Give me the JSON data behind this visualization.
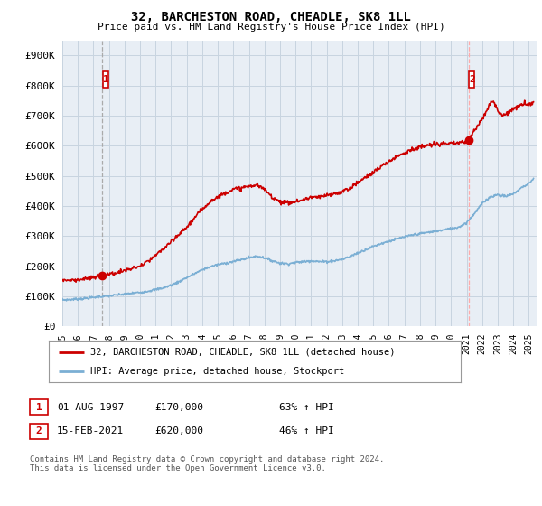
{
  "title": "32, BARCHESTON ROAD, CHEADLE, SK8 1LL",
  "subtitle": "Price paid vs. HM Land Registry's House Price Index (HPI)",
  "ylabel_ticks": [
    "£0",
    "£100K",
    "£200K",
    "£300K",
    "£400K",
    "£500K",
    "£600K",
    "£700K",
    "£800K",
    "£900K"
  ],
  "ytick_values": [
    0,
    100000,
    200000,
    300000,
    400000,
    500000,
    600000,
    700000,
    800000,
    900000
  ],
  "ylim": [
    0,
    950000
  ],
  "xlim_start": 1995.0,
  "xlim_end": 2025.5,
  "xticks": [
    1995,
    1996,
    1997,
    1998,
    1999,
    2000,
    2001,
    2002,
    2003,
    2004,
    2005,
    2006,
    2007,
    2008,
    2009,
    2010,
    2011,
    2012,
    2013,
    2014,
    2015,
    2016,
    2017,
    2018,
    2019,
    2020,
    2021,
    2022,
    2023,
    2024,
    2025
  ],
  "hpi_color": "#7bafd4",
  "sale_color": "#cc0000",
  "vline_color": "#aaaaaa",
  "vline2_color": "#ff8888",
  "point1_x": 1997.58,
  "point1_y": 170000,
  "point2_x": 2021.12,
  "point2_y": 620000,
  "chart_bg": "#e8eef5",
  "legend_sale_label": "32, BARCHESTON ROAD, CHEADLE, SK8 1LL (detached house)",
  "legend_hpi_label": "HPI: Average price, detached house, Stockport",
  "table_row1": [
    "1",
    "01-AUG-1997",
    "£170,000",
    "63% ↑ HPI"
  ],
  "table_row2": [
    "2",
    "15-FEB-2021",
    "£620,000",
    "46% ↑ HPI"
  ],
  "footnote": "Contains HM Land Registry data © Crown copyright and database right 2024.\nThis data is licensed under the Open Government Licence v3.0.",
  "background_color": "#ffffff",
  "grid_color": "#c8d4e0",
  "hpi_anchors": [
    [
      1995.0,
      88000
    ],
    [
      1995.5,
      89000
    ],
    [
      1996.0,
      91000
    ],
    [
      1996.5,
      93000
    ],
    [
      1997.0,
      96000
    ],
    [
      1997.5,
      99000
    ],
    [
      1998.0,
      101000
    ],
    [
      1998.5,
      104000
    ],
    [
      1999.0,
      107000
    ],
    [
      1999.5,
      110000
    ],
    [
      2000.0,
      113000
    ],
    [
      2000.5,
      117000
    ],
    [
      2001.0,
      122000
    ],
    [
      2001.5,
      128000
    ],
    [
      2002.0,
      137000
    ],
    [
      2002.5,
      148000
    ],
    [
      2003.0,
      162000
    ],
    [
      2003.5,
      175000
    ],
    [
      2004.0,
      188000
    ],
    [
      2004.5,
      198000
    ],
    [
      2005.0,
      205000
    ],
    [
      2005.5,
      210000
    ],
    [
      2006.0,
      215000
    ],
    [
      2006.5,
      222000
    ],
    [
      2007.0,
      228000
    ],
    [
      2007.5,
      233000
    ],
    [
      2008.0,
      228000
    ],
    [
      2008.5,
      218000
    ],
    [
      2009.0,
      210000
    ],
    [
      2009.5,
      208000
    ],
    [
      2010.0,
      212000
    ],
    [
      2010.5,
      215000
    ],
    [
      2011.0,
      218000
    ],
    [
      2011.5,
      215000
    ],
    [
      2012.0,
      215000
    ],
    [
      2012.5,
      218000
    ],
    [
      2013.0,
      223000
    ],
    [
      2013.5,
      232000
    ],
    [
      2014.0,
      244000
    ],
    [
      2014.5,
      255000
    ],
    [
      2015.0,
      266000
    ],
    [
      2015.5,
      275000
    ],
    [
      2016.0,
      283000
    ],
    [
      2016.5,
      290000
    ],
    [
      2017.0,
      297000
    ],
    [
      2017.5,
      303000
    ],
    [
      2018.0,
      308000
    ],
    [
      2018.5,
      312000
    ],
    [
      2019.0,
      316000
    ],
    [
      2019.5,
      320000
    ],
    [
      2020.0,
      325000
    ],
    [
      2020.5,
      330000
    ],
    [
      2021.0,
      345000
    ],
    [
      2021.5,
      375000
    ],
    [
      2022.0,
      408000
    ],
    [
      2022.5,
      430000
    ],
    [
      2023.0,
      438000
    ],
    [
      2023.5,
      432000
    ],
    [
      2024.0,
      440000
    ],
    [
      2024.5,
      460000
    ],
    [
      2025.0,
      475000
    ],
    [
      2025.3,
      490000
    ]
  ],
  "sale_anchors": [
    [
      1995.0,
      155000
    ],
    [
      1995.5,
      153000
    ],
    [
      1996.0,
      155000
    ],
    [
      1996.5,
      158000
    ],
    [
      1997.0,
      162000
    ],
    [
      1997.58,
      170000
    ],
    [
      1998.0,
      173000
    ],
    [
      1998.5,
      178000
    ],
    [
      1999.0,
      185000
    ],
    [
      1999.5,
      192000
    ],
    [
      2000.0,
      200000
    ],
    [
      2000.5,
      215000
    ],
    [
      2001.0,
      235000
    ],
    [
      2001.5,
      258000
    ],
    [
      2002.0,
      280000
    ],
    [
      2002.5,
      305000
    ],
    [
      2003.0,
      330000
    ],
    [
      2003.5,
      360000
    ],
    [
      2004.0,
      390000
    ],
    [
      2004.5,
      415000
    ],
    [
      2005.0,
      430000
    ],
    [
      2005.5,
      445000
    ],
    [
      2006.0,
      455000
    ],
    [
      2006.5,
      460000
    ],
    [
      2007.0,
      465000
    ],
    [
      2007.5,
      470000
    ],
    [
      2008.0,
      455000
    ],
    [
      2008.5,
      430000
    ],
    [
      2009.0,
      415000
    ],
    [
      2009.5,
      410000
    ],
    [
      2010.0,
      415000
    ],
    [
      2010.5,
      420000
    ],
    [
      2011.0,
      430000
    ],
    [
      2011.5,
      428000
    ],
    [
      2012.0,
      435000
    ],
    [
      2012.5,
      440000
    ],
    [
      2013.0,
      448000
    ],
    [
      2013.5,
      460000
    ],
    [
      2014.0,
      478000
    ],
    [
      2014.5,
      495000
    ],
    [
      2015.0,
      512000
    ],
    [
      2015.5,
      530000
    ],
    [
      2016.0,
      548000
    ],
    [
      2016.5,
      565000
    ],
    [
      2017.0,
      578000
    ],
    [
      2017.5,
      588000
    ],
    [
      2018.0,
      595000
    ],
    [
      2018.5,
      600000
    ],
    [
      2019.0,
      605000
    ],
    [
      2019.5,
      608000
    ],
    [
      2020.0,
      605000
    ],
    [
      2020.5,
      610000
    ],
    [
      2021.0,
      615000
    ],
    [
      2021.12,
      620000
    ],
    [
      2021.5,
      650000
    ],
    [
      2022.0,
      690000
    ],
    [
      2022.3,
      720000
    ],
    [
      2022.5,
      740000
    ],
    [
      2022.7,
      750000
    ],
    [
      2022.9,
      730000
    ],
    [
      2023.1,
      710000
    ],
    [
      2023.3,
      700000
    ],
    [
      2023.5,
      705000
    ],
    [
      2023.7,
      715000
    ],
    [
      2024.0,
      720000
    ],
    [
      2024.3,
      730000
    ],
    [
      2024.6,
      740000
    ],
    [
      2024.9,
      735000
    ],
    [
      2025.0,
      738000
    ],
    [
      2025.3,
      745000
    ]
  ]
}
